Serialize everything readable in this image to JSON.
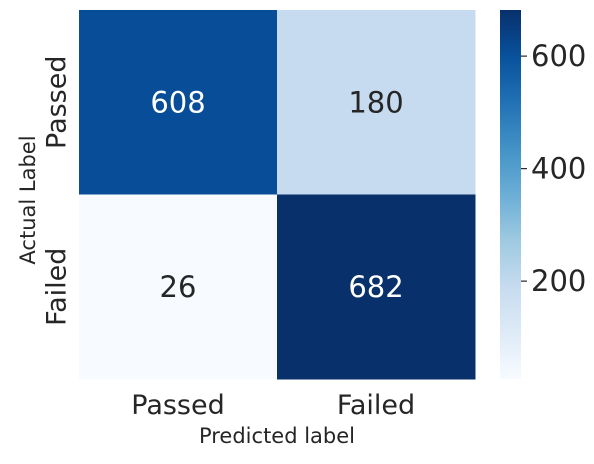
{
  "chart_data": {
    "type": "heatmap",
    "title": "",
    "xlabel": "Predicted label",
    "ylabel": "Actual Label",
    "x_categories": [
      "Passed",
      "Failed"
    ],
    "y_categories": [
      "Passed",
      "Failed"
    ],
    "values": [
      [
        608,
        180
      ],
      [
        26,
        682
      ]
    ],
    "colormap": "Blues",
    "colorbar": {
      "min": 26,
      "max": 682,
      "ticks": [
        200,
        400,
        600
      ],
      "tick_labels": [
        "200",
        "400",
        "600"
      ]
    },
    "colors": {
      "608": "#084d98",
      "180": "#c6dbef",
      "26": "#f7fbff",
      "682": "#08306b",
      "light_text": "#ffffff",
      "dark_text": "#262626"
    }
  }
}
